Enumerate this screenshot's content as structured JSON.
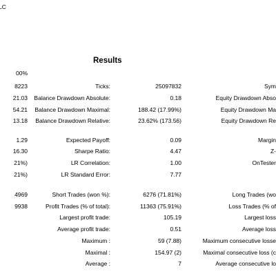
{
  "header": {
    "fragment": "LC"
  },
  "results_title": "Results",
  "left_fragments": [
    "00%",
    "8223",
    "21.03",
    "54.21",
    "13.18",
    "1.29",
    "16.30",
    "21%)",
    "21%)",
    "4969",
    "9938"
  ],
  "rows": [
    {
      "label": "Ticks:",
      "value": "25097832",
      "right": "Sym"
    },
    {
      "label": "Balance Drawdown Absolute:",
      "value": "0.18",
      "right": "Equity Drawdown Abso"
    },
    {
      "label": "Balance Drawdown Maximal:",
      "value": "188.42 (17.99%)",
      "right": "Equity Drawdown Ma"
    },
    {
      "label": "Balance Drawdown Relative:",
      "value": "23.62% (173.56)",
      "right": "Equity Drawdown Re"
    },
    {
      "label": "Expected Payoff:",
      "value": "0.09",
      "right": "Margin"
    },
    {
      "label": "Sharpe Ratio:",
      "value": "4.47",
      "right": "Z-"
    },
    {
      "label": "LR Correlation:",
      "value": "1.00",
      "right": "OnTester"
    },
    {
      "label": "LR Standard Error:",
      "value": "7.77",
      "right": ""
    },
    {
      "label": "Short Trades (won %):",
      "value": "6276 (71.81%)",
      "right": "Long Trades (wo"
    },
    {
      "label": "Profit Trades (% of total):",
      "value": "11363 (75.91%)",
      "right": "Loss Trades (% of"
    },
    {
      "label": "Largest profit trade:",
      "value": "105.19",
      "right": "Largest loss"
    },
    {
      "label": "Average profit trade:",
      "value": "0.51",
      "right": "Average loss"
    },
    {
      "label": "Maximum :",
      "value": "59 (7.88)",
      "right": "Maximum consecutive losse"
    },
    {
      "label": "Maximal :",
      "value": "154.97 (2)",
      "right": "Maximal consecutive loss (c"
    },
    {
      "label": "Average :",
      "value": "7",
      "right": "Average consecutive lo"
    }
  ]
}
